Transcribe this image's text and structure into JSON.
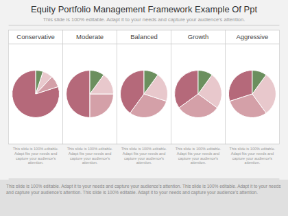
{
  "title": "Equity Portfolio Management Framework Example Of Ppt",
  "subtitle": "This slide is 100% editable. Adapt it to your needs and capture your audience's attention.",
  "footer": "This slide is 100% editable. Adapt it to your needs and capture your audience's attention. This slide is 100% editable. Adapt it to your needs and capture your audience's attention. This slide is 100% editable. Adapt it to your needs and capture your audience's attention.",
  "chart_data": [
    {
      "type": "pie",
      "title": "Conservative",
      "values": [
        80,
        8,
        7,
        5
      ],
      "colors": [
        "#b5697a",
        "#d4a0a8",
        "#e8c8cc",
        "#6b8f5e"
      ],
      "caption": "This slide is 100% editable. Adapt fits your needs and\ncapture your audience's attention."
    },
    {
      "type": "pie",
      "title": "Moderate",
      "values": [
        50,
        25,
        15,
        10
      ],
      "colors": [
        "#b5697a",
        "#d4a0a8",
        "#e8c8cc",
        "#6b8f5e"
      ],
      "caption": "This slide is 100% editable. Adapt fits your needs and\ncapture your audience's attention."
    },
    {
      "type": "pie",
      "title": "Balanced",
      "values": [
        40,
        30,
        20,
        10
      ],
      "colors": [
        "#b5697a",
        "#d4a0a8",
        "#e8c8cc",
        "#6b8f5e"
      ],
      "caption": "This slide is 100% editable. Adapt fits your needs and\ncapture your audience's attention."
    },
    {
      "type": "pie",
      "title": "Growth",
      "values": [
        35,
        30,
        25,
        10
      ],
      "colors": [
        "#b5697a",
        "#d4a0a8",
        "#e8c8cc",
        "#6b8f5e"
      ],
      "caption": "This slide is 100% editable. Adapt fits your needs and\ncapture your audience's attention."
    },
    {
      "type": "pie",
      "title": "Aggressive",
      "values": [
        30,
        30,
        30,
        10
      ],
      "colors": [
        "#b5697a",
        "#d4a0a8",
        "#e8c8cc",
        "#6b8f5e"
      ],
      "caption": "This slide is 100% editable. Adapt fits your needs and\ncapture your audience's attention."
    }
  ]
}
